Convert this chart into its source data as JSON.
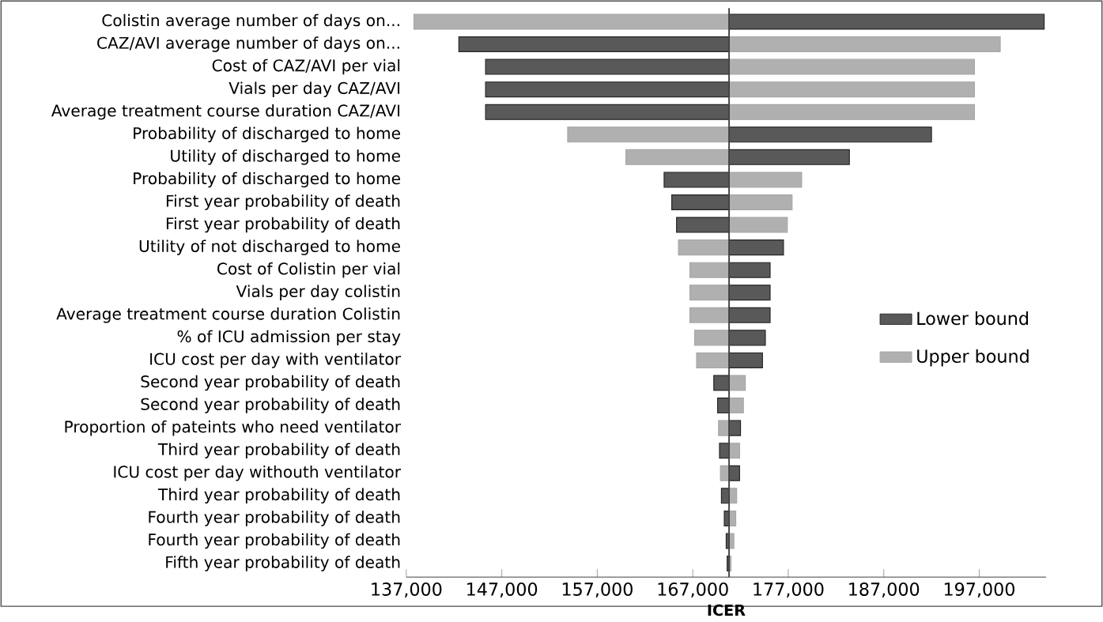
{
  "chart_data": {
    "type": "bar",
    "orientation": "horizontal",
    "xlabel": "ICER",
    "categories": [
      "Colistin average number of days on...",
      "CAZ/AVI average number of days on...",
      "Cost of CAZ/AVI per vial",
      "Vials per day CAZ/AVI",
      "Average treatment course duration CAZ/AVI",
      "Probability of discharged to home",
      "Utility of discharged to home",
      "Probability of discharged to home",
      "First year probability of death",
      "First year probability of death",
      "Utility of not discharged to home",
      "Cost of Colistin per vial",
      "Vials per day colistin",
      "Average treatment course duration Colistin",
      "% of ICU admission per stay",
      "ICU cost per day with ventilator",
      "Second year probability of death",
      "Second year probability of death",
      "Proportion of pateints who need ventilator",
      "Third year probability of death",
      "ICU cost per day withouth ventilator",
      "Third year probability of death",
      "Fourth year probability of death",
      "Fourth year probability of death",
      "Fifth year probability of death"
    ],
    "series": [
      {
        "name": "Lower bound",
        "color": "#595959",
        "base": [
          170800,
          170800,
          170800,
          170800,
          170800,
          170800,
          170800,
          170800,
          170800,
          170800,
          170800,
          170800,
          170800,
          170800,
          170800,
          170800,
          170800,
          170800,
          170800,
          170800,
          170800,
          170800,
          170800,
          170800,
          170800
        ],
        "values": [
          33000,
          -28300,
          -25500,
          -25500,
          -25500,
          21200,
          12600,
          -6800,
          -6000,
          -5500,
          5700,
          4300,
          4300,
          4300,
          3800,
          3500,
          -1600,
          -1200,
          1200,
          -1000,
          1100,
          -800,
          -500,
          -300,
          -200
        ]
      },
      {
        "name": "Upper bound",
        "color": "#b0b0b0",
        "base": [
          170800,
          170800,
          170800,
          170800,
          170800,
          170800,
          170800,
          170800,
          170800,
          170800,
          170800,
          170800,
          170800,
          170800,
          170800,
          170800,
          170800,
          170800,
          170800,
          170800,
          170800,
          170800,
          170800,
          170800,
          170800
        ],
        "values": [
          -33000,
          28400,
          25700,
          25700,
          25700,
          -16900,
          -10800,
          7600,
          6600,
          6100,
          -5300,
          -4100,
          -4100,
          -4100,
          -3600,
          -3400,
          1700,
          1500,
          -1100,
          1100,
          -900,
          800,
          700,
          500,
          200
        ]
      }
    ],
    "ref_lines": [
      {
        "axis": "x",
        "value": 170800,
        "color": "#404040"
      }
    ],
    "xlim": [
      137000,
      204000
    ],
    "xticks": [
      {
        "value": 137000,
        "label": "137,000"
      },
      {
        "value": 147000,
        "label": "147,000"
      },
      {
        "value": 157000,
        "label": "157,000"
      },
      {
        "value": 167000,
        "label": "167,000"
      },
      {
        "value": 177000,
        "label": "177,000"
      },
      {
        "value": 187000,
        "label": "187,000"
      },
      {
        "value": 197000,
        "label": "197,000"
      }
    ],
    "legend": "right"
  }
}
